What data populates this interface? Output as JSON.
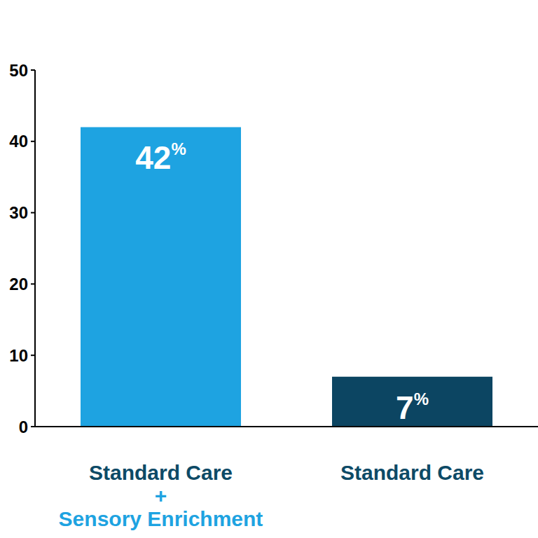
{
  "chart_data": {
    "type": "bar",
    "categories": [
      "Standard Care + Sensory Enrichment",
      "Standard Care"
    ],
    "values": [
      42,
      7
    ],
    "value_labels": [
      "42%",
      "7%"
    ],
    "colors": [
      "#1ea3e1",
      "#0c4562"
    ],
    "ylim": [
      0,
      50
    ],
    "yticks": [
      0,
      10,
      20,
      30,
      40,
      50
    ],
    "grid": false,
    "data_labels": true
  }
}
